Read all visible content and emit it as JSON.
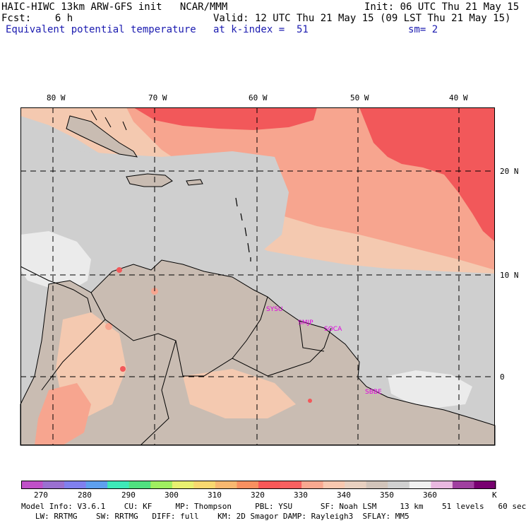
{
  "header": {
    "line1_left": "HAIC-HIWC 13km ARW-GFS init   NCAR/MMM",
    "line1_right": "Init: 06 UTC Thu 21 May 15",
    "line2_left": "Fcst:    6 h",
    "line2_right": "Valid: 12 UTC Thu 21 May 15 (09 LST Thu 21 May 15)",
    "line3_left": "Equivalent potential temperature",
    "line3_mid": "at k-index =  51",
    "line3_right": "sm= 2"
  },
  "map": {
    "lon_labels": [
      "80 W",
      "70 W",
      "60 W",
      "50 W",
      "40 W"
    ],
    "lat_labels": [
      "20 N",
      "10 N",
      "0"
    ],
    "stations": [
      "SYSU",
      "SMJP",
      "SOCA",
      "SBBE"
    ],
    "colors": {
      "land_base": "#c9bcb2",
      "ocean_gray": "#cfcfcf",
      "light_white": "#ebebeb",
      "pale_orange": "#f4c9b0",
      "salmon": "#f7a58f",
      "red": "#f2585a",
      "station_text": "#e000e0"
    }
  },
  "colorbar": {
    "labels": [
      "270",
      "280",
      "290",
      "300",
      "310",
      "320",
      "330",
      "340",
      "350",
      "360"
    ],
    "unit": "K",
    "colors": [
      "#c050c8",
      "#9a70d0",
      "#8080ee",
      "#5ea0ee",
      "#3ee8b8",
      "#50e080",
      "#a0ee60",
      "#e8f070",
      "#f8d870",
      "#f8b870",
      "#f89060",
      "#f85858",
      "#f86060",
      "#f8a890",
      "#f8c8b0",
      "#e8d0c0",
      "#d2c4ba",
      "#d0d0d0",
      "#f0f0f0",
      "#e8b8e0",
      "#a040a0",
      "#780070"
    ]
  },
  "model_info": {
    "line1": "Model Info: V3.6.1    CU: KF     MP: Thompson     PBL: YSU      SF: Noah LSM     13 km    51 levels   60 sec",
    "line2": "   LW: RRTMG    SW: RRTMG   DIFF: full    KM: 2D Smagor DAMP: Rayleigh3  SFLAY: MM5"
  }
}
